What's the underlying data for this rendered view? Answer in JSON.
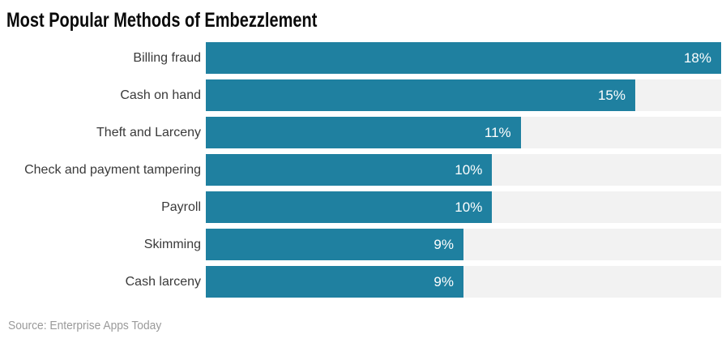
{
  "header": {
    "title": "Most Popular Methods of Embezzlement"
  },
  "footer": {
    "source": "Source: Enterprise Apps Today"
  },
  "colors": {
    "bar": "#1f80a0",
    "track": "#f2f2f2",
    "title": "#0a0a0a",
    "label": "#3a3a3a",
    "value": "#ffffff",
    "source": "#9a9a9a",
    "background": "#ffffff"
  },
  "chart_data": {
    "type": "bar",
    "orientation": "horizontal",
    "title": "Most Popular Methods of Embezzlement",
    "categories": [
      "Billing fraud",
      "Cash on hand",
      "Theft and Larceny",
      "Check and payment tampering",
      "Payroll",
      "Skimming",
      "Cash larceny"
    ],
    "values": [
      18,
      15,
      11,
      10,
      10,
      9,
      9
    ],
    "value_labels": [
      "18%",
      "15%",
      "11%",
      "10%",
      "10%",
      "9%",
      "9%"
    ],
    "xlabel": "",
    "ylabel": "",
    "xlim": [
      0,
      18
    ],
    "grid": false,
    "legend": false,
    "value_label_position": "inside-end",
    "source": "Source: Enterprise Apps Today"
  }
}
